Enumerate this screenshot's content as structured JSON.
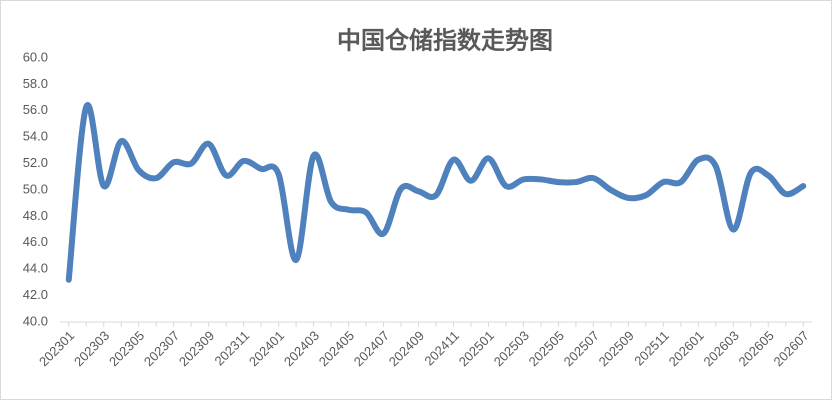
{
  "chart_data": {
    "type": "line",
    "title": "中国仓储指数走势图",
    "categories": [
      "202301",
      null,
      "202303",
      null,
      "202305",
      null,
      "202307",
      null,
      "202309",
      null,
      "202311",
      null,
      "202401",
      null,
      "202403",
      null,
      "202405",
      null,
      "202407",
      null,
      "202409",
      null,
      "202411",
      null,
      "202501",
      null,
      "202503",
      null,
      "202505",
      null,
      "202507",
      null,
      "202509",
      null,
      "202511",
      null,
      "202601",
      null,
      "202603",
      null,
      "202605",
      null,
      "202607"
    ],
    "series": [
      {
        "color": "#4f81bd",
        "values": [
          43.2,
          56.3,
          50.3,
          53.7,
          51.5,
          50.9,
          52.1,
          52.0,
          53.5,
          51.1,
          52.2,
          51.6,
          51.2,
          44.7,
          52.6,
          49.1,
          48.5,
          48.3,
          46.7,
          50.1,
          49.9,
          49.6,
          52.3,
          50.7,
          52.4,
          50.3,
          50.8,
          50.8,
          50.6,
          50.6,
          50.9,
          50.0,
          49.4,
          49.6,
          50.6,
          50.6,
          52.3,
          51.8,
          47.0,
          51.3,
          51.1,
          49.7,
          50.3
        ]
      }
    ],
    "ylim": [
      40,
      60
    ],
    "yticks": [
      {
        "value": 40,
        "label": "40.0"
      },
      {
        "value": 42,
        "label": "42.0"
      },
      {
        "value": 44,
        "label": "44.0"
      },
      {
        "value": 46,
        "label": "46.0"
      },
      {
        "value": 48,
        "label": "48.0"
      },
      {
        "value": 50,
        "label": "50.0"
      },
      {
        "value": 52,
        "label": "52.0"
      },
      {
        "value": 54,
        "label": "54.0"
      },
      {
        "value": 56,
        "label": "56.0"
      },
      {
        "value": 58,
        "label": "58.0"
      },
      {
        "value": 60,
        "label": "60.0"
      }
    ]
  }
}
